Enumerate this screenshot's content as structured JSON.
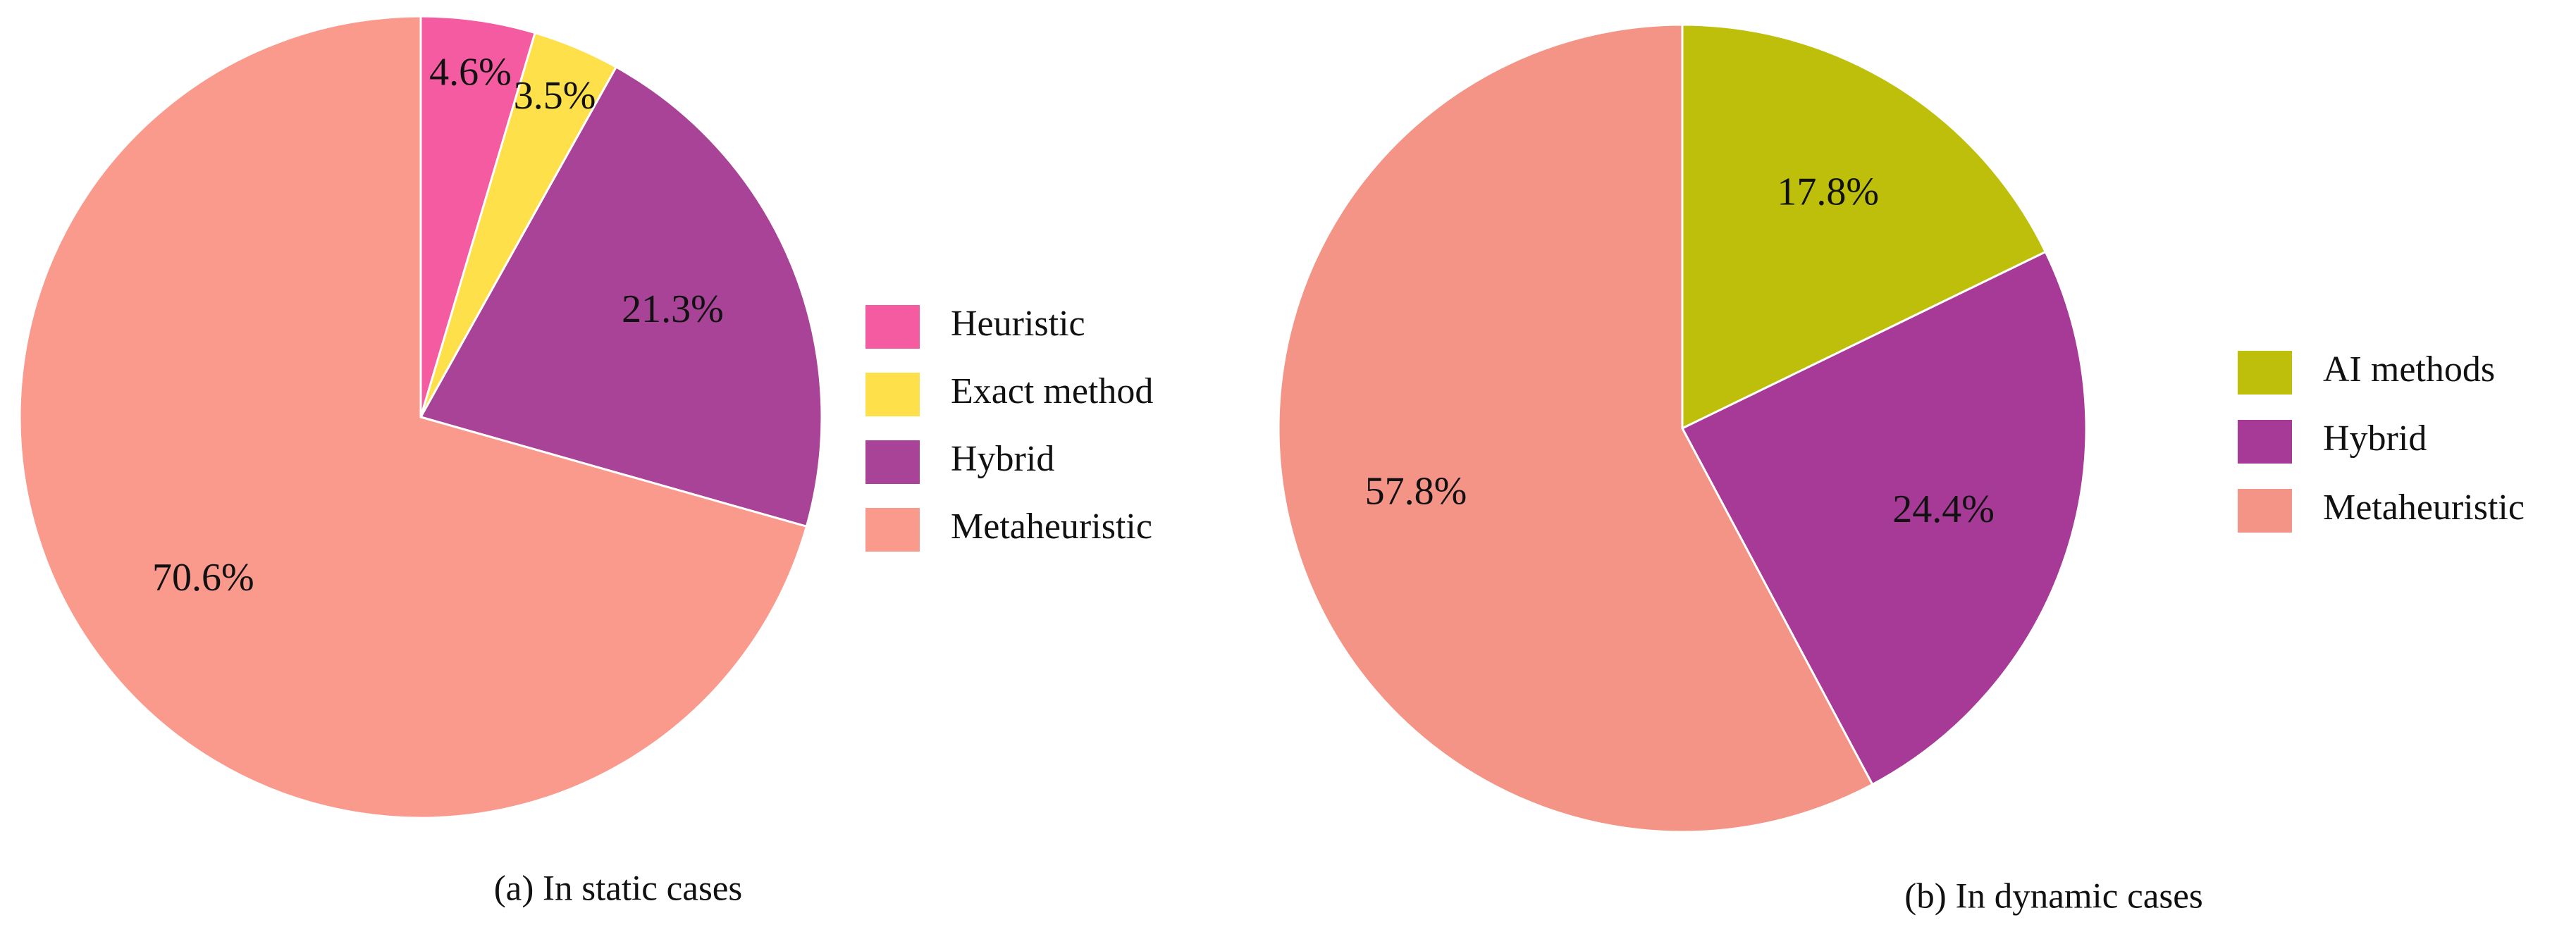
{
  "chart_data": [
    {
      "type": "pie",
      "title": "(a) In static cases",
      "categories": [
        "Heuristic",
        "Exact method",
        "Hybrid",
        "Metaheuristic"
      ],
      "values": [
        4.6,
        3.5,
        21.3,
        70.6
      ],
      "value_labels": [
        "4.6%",
        "3.5%",
        "21.3%",
        "70.6%"
      ],
      "colors": [
        "#f45ba0",
        "#fde04a",
        "#a84397",
        "#f99a8d"
      ],
      "legend": "right"
    },
    {
      "type": "pie",
      "title": "(b) In dynamic cases",
      "categories": [
        "AI methods",
        "Hybrid",
        "Metaheuristic"
      ],
      "values": [
        17.8,
        24.4,
        57.8
      ],
      "value_labels": [
        "17.8%",
        "24.4%",
        "57.8%"
      ],
      "colors": [
        "#bdbf0a",
        "#a63a96",
        "#f39487"
      ],
      "legend": "right"
    }
  ]
}
